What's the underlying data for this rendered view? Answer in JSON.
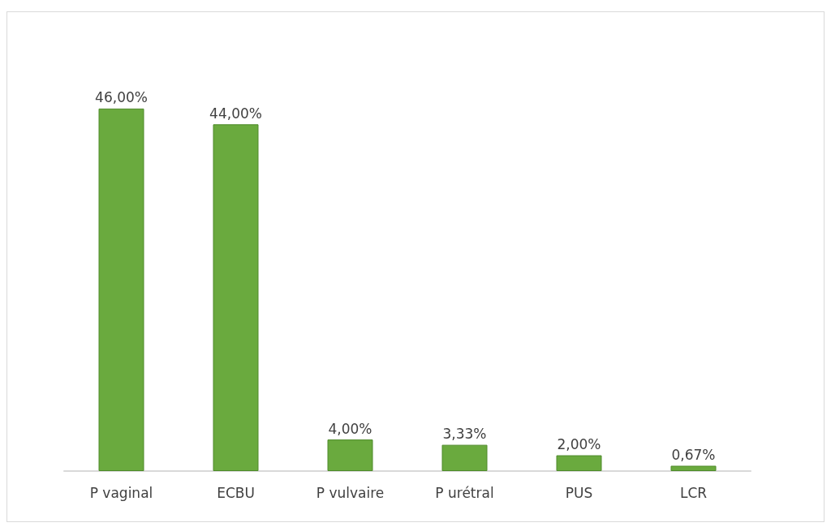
{
  "chart_data": {
    "type": "bar",
    "categories": [
      "P vaginal",
      "ECBU",
      "P vulvaire",
      "P urétral",
      "PUS",
      "LCR"
    ],
    "values": [
      46,
      44,
      4,
      3.33,
      2,
      0.67
    ],
    "value_labels": [
      "46,00%",
      "44,00%",
      "4,00%",
      "3,33%",
      "2,00%",
      "0,67%"
    ],
    "color": "#6aaa3e"
  }
}
